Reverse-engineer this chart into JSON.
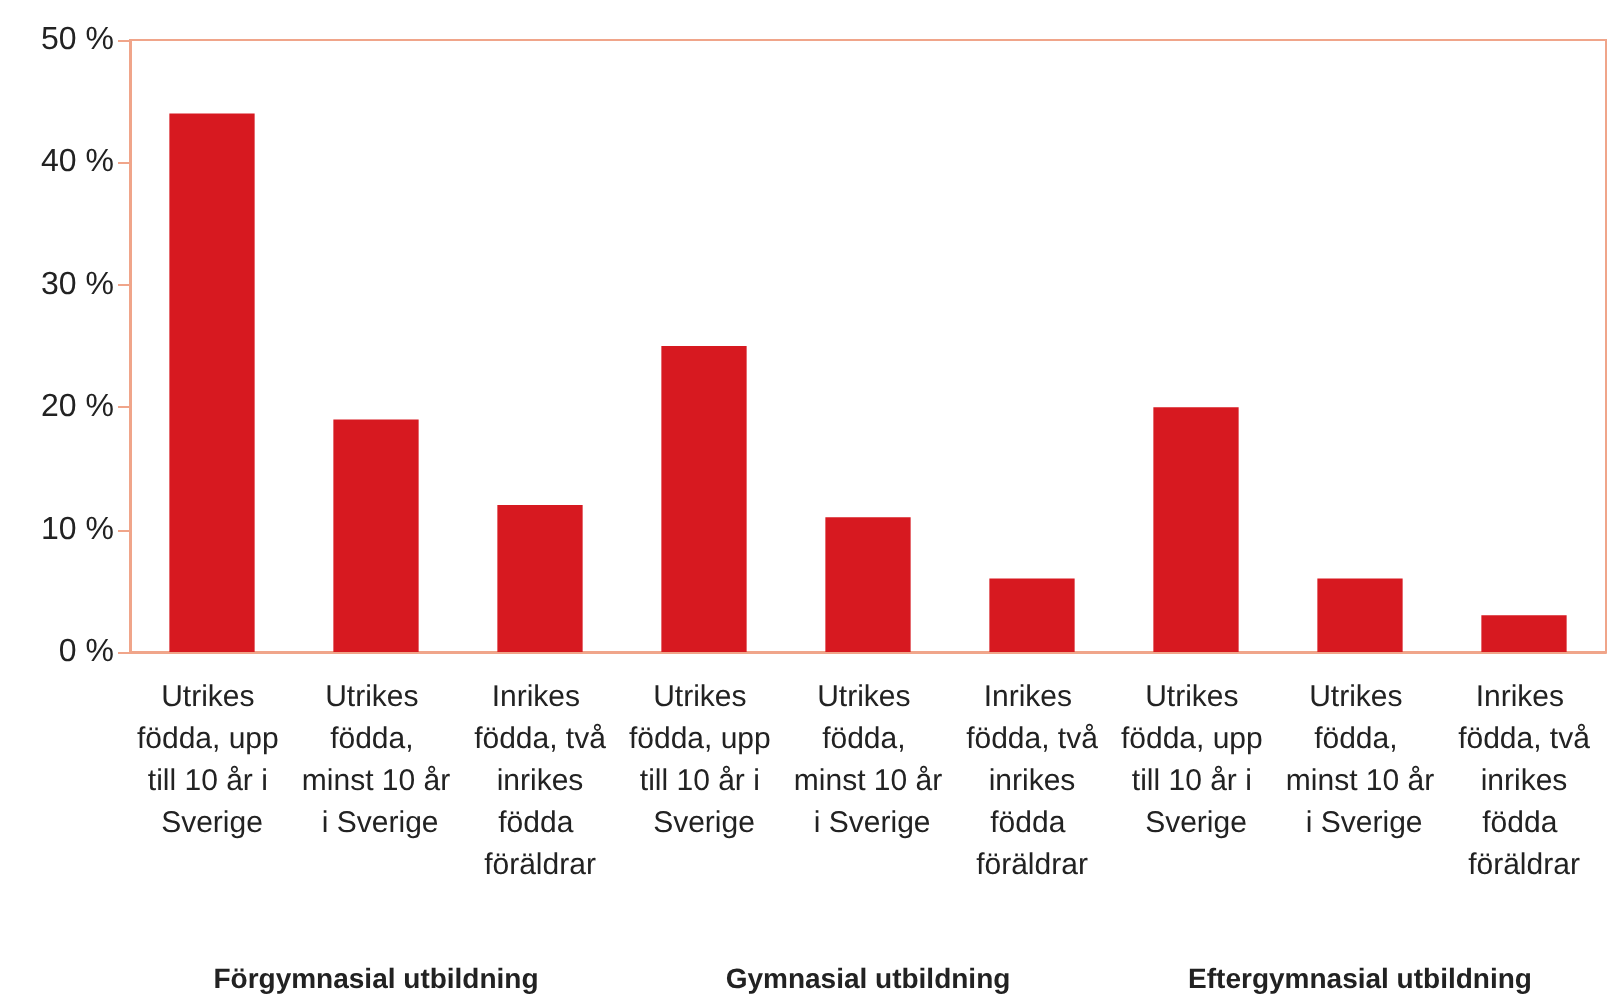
{
  "chart_data": {
    "type": "bar",
    "categories": [
      "Utrikes födda, upp till 10 år i Sverige",
      "Utrikes födda, minst 10 år i Sverige",
      "Inrikes födda, två inrikes födda föräldrar",
      "Utrikes födda, upp till 10 år i Sverige",
      "Utrikes födda, minst 10 år i Sverige",
      "Inrikes födda, två inrikes födda föräldrar",
      "Utrikes födda, upp till 10 år i Sverige",
      "Utrikes födda, minst 10 år i Sverige",
      "Inrikes födda, två inrikes födda föräldrar"
    ],
    "values": [
      44,
      19,
      12,
      25,
      11,
      6,
      20,
      6,
      3
    ],
    "color": "#d71920",
    "ylim": [
      0,
      50
    ],
    "yticks": [
      {
        "value": 0,
        "label": "0 %"
      },
      {
        "value": 10,
        "label": "10 %"
      },
      {
        "value": 20,
        "label": "20 %"
      },
      {
        "value": 30,
        "label": "30 %"
      },
      {
        "value": 40,
        "label": "40 %"
      },
      {
        "value": 50,
        "label": "50 %"
      }
    ],
    "annotations": [
      "Förgymnasial utbildning",
      "Gymnasial utbildning",
      "Eftergymnasial utbildning"
    ],
    "grid": false
  }
}
